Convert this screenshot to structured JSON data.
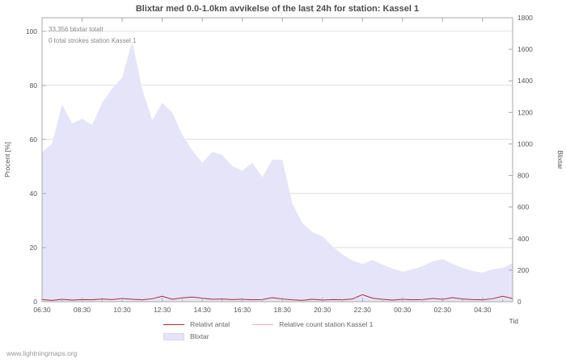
{
  "title": "Blixtar med 0.0-1.0km avvikelse of the last 24h for station: Kassel 1",
  "annotation_total": "33,356 blixtar totalt",
  "annotation_station": "0 total strokes station Kassel 1",
  "watermark": "www.lightningmaps.org",
  "axes": {
    "left_label": "Procent  [%]",
    "right_label": "Blixtar",
    "x_label": "Tid",
    "left_ticks": [
      0,
      20,
      40,
      60,
      80,
      100
    ],
    "right_ticks": [
      0,
      200,
      400,
      600,
      800,
      1000,
      1200,
      1400,
      1600,
      1800
    ],
    "left_max": 105,
    "right_max": 1800
  },
  "legend": {
    "relative_label": "Relativt antal",
    "station_label": "Relative count station Kassel 1",
    "area_label": "Blixtar"
  },
  "colors": {
    "area": "#e6e4f8",
    "relative_line": "#a63030",
    "station_line": "#f0b4b4",
    "grid": "#cccccc",
    "frame": "#aaaaaa"
  },
  "chart_data": {
    "type": "area",
    "x_tick_every": 4,
    "x": [
      "06:30",
      "07:00",
      "07:30",
      "08:00",
      "08:30",
      "09:00",
      "09:30",
      "10:00",
      "10:30",
      "11:00",
      "11:30",
      "12:00",
      "12:30",
      "13:00",
      "13:30",
      "14:00",
      "14:30",
      "15:00",
      "15:30",
      "16:00",
      "16:30",
      "17:00",
      "17:30",
      "18:00",
      "18:30",
      "19:00",
      "19:30",
      "20:00",
      "20:30",
      "21:00",
      "21:30",
      "22:00",
      "22:30",
      "23:00",
      "23:30",
      "00:00",
      "00:30",
      "01:00",
      "01:30",
      "02:00",
      "02:30",
      "03:00",
      "03:30",
      "04:00",
      "04:30",
      "05:00",
      "05:30",
      "06:00"
    ],
    "series": [
      {
        "name": "Blixtar",
        "kind": "area",
        "axis": "right",
        "color_key": "area",
        "values": [
          950,
          1000,
          1250,
          1130,
          1160,
          1120,
          1260,
          1350,
          1420,
          1650,
          1350,
          1150,
          1260,
          1200,
          1060,
          960,
          880,
          950,
          930,
          860,
          830,
          880,
          790,
          900,
          900,
          620,
          500,
          440,
          415,
          350,
          300,
          260,
          240,
          265,
          235,
          210,
          190,
          205,
          225,
          255,
          270,
          240,
          215,
          195,
          185,
          205,
          215,
          245
        ]
      },
      {
        "name": "Relative count station Kassel 1",
        "kind": "line",
        "axis": "left",
        "color_key": "station_line",
        "values": [
          0,
          0,
          0,
          0,
          0,
          0,
          0,
          0,
          0,
          0,
          0,
          0,
          0,
          0,
          0,
          0,
          0,
          0,
          0,
          0,
          0,
          0,
          0,
          0,
          0,
          0,
          0,
          0,
          0,
          0,
          0,
          0,
          0,
          0,
          0,
          0,
          0,
          0,
          0,
          0,
          0,
          0,
          0,
          0,
          0,
          0,
          0,
          0
        ]
      },
      {
        "name": "Relativt antal",
        "kind": "line",
        "axis": "left",
        "color_key": "relative_line",
        "values": [
          0.8,
          0.5,
          0.9,
          0.6,
          0.8,
          0.7,
          1.0,
          0.8,
          1.2,
          0.9,
          0.7,
          1.1,
          2.0,
          0.9,
          1.4,
          1.7,
          1.3,
          0.9,
          1.0,
          0.8,
          0.9,
          0.7,
          0.8,
          1.5,
          1.0,
          0.7,
          0.5,
          0.9,
          0.6,
          0.8,
          0.7,
          1.0,
          2.6,
          1.3,
          0.9,
          0.6,
          0.9,
          0.7,
          0.8,
          1.2,
          0.9,
          1.5,
          1.0,
          0.8,
          0.7,
          1.1,
          2.0,
          1.2
        ]
      }
    ]
  }
}
